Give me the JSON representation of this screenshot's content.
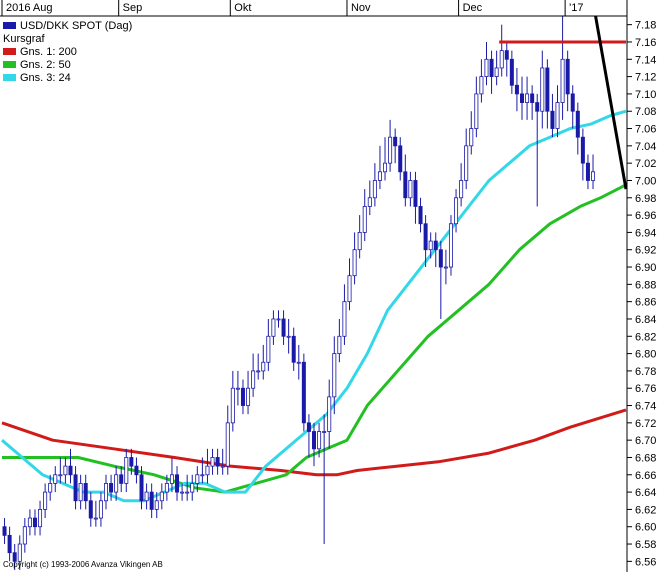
{
  "chart_data": {
    "type": "candlestick",
    "title": "USD/DKK SPOT (Dag)",
    "legend": [
      {
        "label": "USD/DKK SPOT (Dag)",
        "color": "#1a1aa8",
        "swatch": true
      },
      {
        "label": "Kursgraf",
        "color": "",
        "swatch": false
      },
      {
        "label": "Gns. 1: 200",
        "color": "#d11a1a",
        "swatch": true
      },
      {
        "label": "Gns. 2: 50",
        "color": "#22c022",
        "swatch": true
      },
      {
        "label": "Gns. 3: 24",
        "color": "#33d8e8",
        "swatch": true
      }
    ],
    "legend_position": "top-left",
    "x_tick_labels": [
      "2016 Aug",
      "Sep",
      "Okt",
      "Nov",
      "Dec",
      "'17"
    ],
    "x_range": [
      0,
      123
    ],
    "x_ticks": [
      0,
      23,
      45,
      68,
      90,
      111
    ],
    "y_ticks": [
      6.56,
      6.58,
      6.6,
      6.62,
      6.64,
      6.66,
      6.68,
      6.7,
      6.72,
      6.74,
      6.76,
      6.78,
      6.8,
      6.82,
      6.84,
      6.86,
      6.88,
      6.9,
      6.92,
      6.94,
      6.96,
      6.98,
      7.0,
      7.02,
      7.04,
      7.06,
      7.08,
      7.1,
      7.12,
      7.14,
      7.16,
      7.18
    ],
    "ylim": [
      6.55,
      7.19
    ],
    "grid": false,
    "candles": {
      "open": [
        6.6,
        6.59,
        6.57,
        6.56,
        6.58,
        6.6,
        6.61,
        6.6,
        6.62,
        6.64,
        6.65,
        6.66,
        6.66,
        6.67,
        6.66,
        6.63,
        6.65,
        6.63,
        6.61,
        6.61,
        6.63,
        6.65,
        6.64,
        6.66,
        6.65,
        6.68,
        6.67,
        6.66,
        6.63,
        6.64,
        6.62,
        6.63,
        6.64,
        6.65,
        6.66,
        6.64,
        6.64,
        6.64,
        6.65,
        6.66,
        6.66,
        6.67,
        6.68,
        6.67,
        6.67,
        6.72,
        6.76,
        6.76,
        6.74,
        6.76,
        6.78,
        6.78,
        6.79,
        6.82,
        6.84,
        6.84,
        6.82,
        6.82,
        6.79,
        6.79,
        6.72,
        6.71,
        6.69,
        6.71,
        6.71,
        6.75,
        6.8,
        6.82,
        6.86,
        6.89,
        6.92,
        6.94,
        6.97,
        6.98,
        7.0,
        7.01,
        7.02,
        7.05,
        7.04,
        7.01,
        6.98,
        7.0,
        6.97,
        6.95,
        6.92,
        6.93,
        6.92,
        6.9,
        6.9,
        6.95,
        6.98,
        7.0,
        7.04,
        7.06,
        7.1,
        7.12,
        7.14,
        7.12,
        7.13,
        7.15,
        7.14,
        7.11,
        7.1,
        7.09,
        7.1,
        7.09,
        7.08,
        7.13,
        7.08,
        7.06,
        7.09,
        7.14,
        7.1,
        7.08,
        7.05,
        7.02,
        7.0
      ],
      "close": [
        6.59,
        6.57,
        6.56,
        6.58,
        6.6,
        6.61,
        6.6,
        6.62,
        6.64,
        6.65,
        6.66,
        6.66,
        6.67,
        6.66,
        6.63,
        6.65,
        6.63,
        6.61,
        6.61,
        6.63,
        6.65,
        6.64,
        6.66,
        6.65,
        6.68,
        6.67,
        6.66,
        6.63,
        6.64,
        6.62,
        6.63,
        6.64,
        6.65,
        6.66,
        6.64,
        6.64,
        6.64,
        6.65,
        6.66,
        6.66,
        6.67,
        6.68,
        6.67,
        6.67,
        6.72,
        6.76,
        6.76,
        6.74,
        6.76,
        6.78,
        6.78,
        6.79,
        6.82,
        6.84,
        6.84,
        6.82,
        6.82,
        6.79,
        6.79,
        6.72,
        6.71,
        6.69,
        6.71,
        6.71,
        6.75,
        6.8,
        6.82,
        6.86,
        6.89,
        6.92,
        6.94,
        6.97,
        6.98,
        7.0,
        7.01,
        7.02,
        7.05,
        7.04,
        7.01,
        6.98,
        7.0,
        6.97,
        6.95,
        6.92,
        6.93,
        6.92,
        6.9,
        6.9,
        6.95,
        6.98,
        7.0,
        7.04,
        7.06,
        7.1,
        7.12,
        7.14,
        7.12,
        7.13,
        7.15,
        7.14,
        7.11,
        7.1,
        7.09,
        7.1,
        7.09,
        7.08,
        7.13,
        7.08,
        7.06,
        7.09,
        7.14,
        7.1,
        7.08,
        7.05,
        7.02,
        7.0,
        7.01
      ],
      "high": [
        6.61,
        6.6,
        6.58,
        6.59,
        6.61,
        6.62,
        6.62,
        6.63,
        6.65,
        6.66,
        6.67,
        6.68,
        6.68,
        6.69,
        6.67,
        6.66,
        6.66,
        6.64,
        6.63,
        6.64,
        6.66,
        6.66,
        6.67,
        6.67,
        6.69,
        6.69,
        6.68,
        6.67,
        6.65,
        6.65,
        6.64,
        6.65,
        6.66,
        6.68,
        6.67,
        6.65,
        6.66,
        6.66,
        6.67,
        6.68,
        6.69,
        6.69,
        6.69,
        6.69,
        6.74,
        6.78,
        6.78,
        6.77,
        6.78,
        6.8,
        6.8,
        6.81,
        6.84,
        6.85,
        6.85,
        6.85,
        6.84,
        6.83,
        6.81,
        6.8,
        6.73,
        6.72,
        6.72,
        6.73,
        6.77,
        6.82,
        6.84,
        6.88,
        6.91,
        6.94,
        6.96,
        6.99,
        7.0,
        7.02,
        7.04,
        7.05,
        7.07,
        7.06,
        7.05,
        7.03,
        7.01,
        7.01,
        6.98,
        6.96,
        6.94,
        6.94,
        6.93,
        6.92,
        6.96,
        6.99,
        7.02,
        7.06,
        7.08,
        7.12,
        7.14,
        7.16,
        7.15,
        7.15,
        7.18,
        7.16,
        7.15,
        7.13,
        7.12,
        7.12,
        7.11,
        7.1,
        7.15,
        7.14,
        7.1,
        7.11,
        7.19,
        7.15,
        7.11,
        7.09,
        7.06,
        7.03,
        7.03
      ],
      "low": [
        6.58,
        6.56,
        6.55,
        6.55,
        6.57,
        6.59,
        6.59,
        6.59,
        6.61,
        6.63,
        6.64,
        6.65,
        6.65,
        6.65,
        6.62,
        6.62,
        6.62,
        6.6,
        6.6,
        6.6,
        6.62,
        6.63,
        6.63,
        6.64,
        6.64,
        6.66,
        6.65,
        6.62,
        6.62,
        6.61,
        6.61,
        6.62,
        6.63,
        6.64,
        6.63,
        6.63,
        6.63,
        6.63,
        6.64,
        6.65,
        6.65,
        6.66,
        6.66,
        6.66,
        6.66,
        6.71,
        6.74,
        6.73,
        6.73,
        6.75,
        6.77,
        6.77,
        6.78,
        6.81,
        6.83,
        6.81,
        6.8,
        6.78,
        6.77,
        6.71,
        6.68,
        6.67,
        6.68,
        6.58,
        6.69,
        6.73,
        6.79,
        6.81,
        6.85,
        6.88,
        6.91,
        6.93,
        6.96,
        6.97,
        6.99,
        7.0,
        7.01,
        7.02,
        7.0,
        6.97,
        6.97,
        6.95,
        6.94,
        6.9,
        6.91,
        6.9,
        6.84,
        6.88,
        6.89,
        6.94,
        6.97,
        6.99,
        7.03,
        7.05,
        7.09,
        7.11,
        7.1,
        7.11,
        7.12,
        7.12,
        7.1,
        7.08,
        7.07,
        7.07,
        7.07,
        6.97,
        7.06,
        7.06,
        7.05,
        7.05,
        7.07,
        7.08,
        7.06,
        7.03,
        7.0,
        6.99,
        6.99
      ]
    },
    "moving_averages": [
      {
        "name": "Gns. 1: 200",
        "color": "#d11a1a",
        "points": [
          [
            0,
            6.72
          ],
          [
            10,
            6.7
          ],
          [
            22,
            6.69
          ],
          [
            34,
            6.68
          ],
          [
            45,
            6.67
          ],
          [
            55,
            6.665
          ],
          [
            62,
            6.66
          ],
          [
            66,
            6.66
          ],
          [
            70,
            6.665
          ],
          [
            78,
            6.67
          ],
          [
            86,
            6.675
          ],
          [
            96,
            6.685
          ],
          [
            105,
            6.7
          ],
          [
            112,
            6.715
          ],
          [
            123,
            6.735
          ]
        ]
      },
      {
        "name": "Gns. 2: 50",
        "color": "#22c022",
        "points": [
          [
            0,
            6.68
          ],
          [
            8,
            6.68
          ],
          [
            15,
            6.68
          ],
          [
            22,
            6.67
          ],
          [
            30,
            6.66
          ],
          [
            38,
            6.645
          ],
          [
            44,
            6.64
          ],
          [
            50,
            6.65
          ],
          [
            56,
            6.66
          ],
          [
            60,
            6.68
          ],
          [
            64,
            6.69
          ],
          [
            68,
            6.7
          ],
          [
            72,
            6.74
          ],
          [
            78,
            6.78
          ],
          [
            84,
            6.82
          ],
          [
            90,
            6.85
          ],
          [
            96,
            6.88
          ],
          [
            102,
            6.92
          ],
          [
            108,
            6.95
          ],
          [
            114,
            6.97
          ],
          [
            118,
            6.98
          ],
          [
            123,
            6.995
          ]
        ]
      },
      {
        "name": "Gns. 3: 24",
        "color": "#33d8e8",
        "points": [
          [
            0,
            6.7
          ],
          [
            4,
            6.68
          ],
          [
            8,
            6.66
          ],
          [
            12,
            6.65
          ],
          [
            16,
            6.64
          ],
          [
            20,
            6.64
          ],
          [
            24,
            6.63
          ],
          [
            28,
            6.63
          ],
          [
            32,
            6.64
          ],
          [
            36,
            6.65
          ],
          [
            40,
            6.65
          ],
          [
            44,
            6.64
          ],
          [
            48,
            6.64
          ],
          [
            52,
            6.67
          ],
          [
            56,
            6.69
          ],
          [
            60,
            6.71
          ],
          [
            64,
            6.73
          ],
          [
            68,
            6.76
          ],
          [
            72,
            6.8
          ],
          [
            76,
            6.85
          ],
          [
            80,
            6.88
          ],
          [
            84,
            6.91
          ],
          [
            88,
            6.94
          ],
          [
            92,
            6.97
          ],
          [
            96,
            7.0
          ],
          [
            100,
            7.02
          ],
          [
            104,
            7.04
          ],
          [
            108,
            7.05
          ],
          [
            112,
            7.06
          ],
          [
            116,
            7.065
          ],
          [
            120,
            7.075
          ],
          [
            123,
            7.08
          ]
        ]
      }
    ],
    "annotations": [
      {
        "type": "hline",
        "color": "#d11a1a",
        "x1": 98,
        "x2": 123,
        "y": 7.16
      },
      {
        "type": "trendline",
        "color": "#000000",
        "x1": 117,
        "y1": 7.19,
        "x2": 123,
        "y2": 6.99
      }
    ]
  },
  "copyright": "Copyright (c) 1993-2006 Avanza Vikingen AB",
  "colors": {
    "up_body": "#ffffff",
    "down_body": "#1a1aa8",
    "wick": "#1a1aa8",
    "frame": "#000000"
  }
}
